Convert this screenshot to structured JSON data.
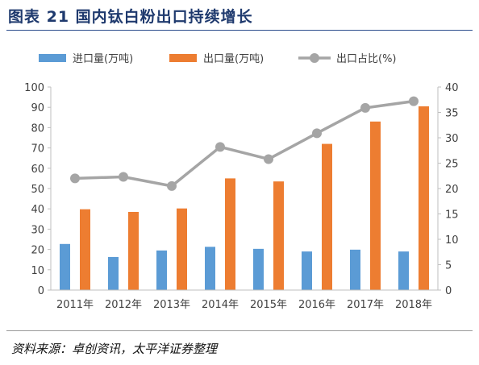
{
  "figure_title": "图表 21  国内钛白粉出口持续增长",
  "source": "资料来源：卓创资讯，太平洋证券整理",
  "chart_data": {
    "type": "bar",
    "categories": [
      "2011年",
      "2012年",
      "2013年",
      "2014年",
      "2015年",
      "2016年",
      "2017年",
      "2018年"
    ],
    "series": [
      {
        "name": "进口量(万吨)",
        "type": "bar",
        "axis": "left",
        "color": "#5b9bd5",
        "values": [
          22.7,
          16.3,
          19.5,
          21.3,
          20.3,
          19.0,
          19.9,
          19.0
        ]
      },
      {
        "name": "出口量(万吨)",
        "type": "bar",
        "axis": "left",
        "color": "#ed7d31",
        "values": [
          39.8,
          38.5,
          40.2,
          55.0,
          53.5,
          72.0,
          83.0,
          90.5
        ]
      },
      {
        "name": "出口占比(%)",
        "type": "line",
        "axis": "right",
        "color": "#a5a5a5",
        "values": [
          22.0,
          22.3,
          20.5,
          28.2,
          25.8,
          30.9,
          35.9,
          37.2
        ]
      }
    ],
    "left_axis": {
      "min": 0,
      "max": 100,
      "step": 10,
      "ticks": [
        "0",
        "10",
        "20",
        "30",
        "40",
        "50",
        "60",
        "70",
        "80",
        "90",
        "100"
      ]
    },
    "right_axis": {
      "min": 0,
      "max": 40,
      "step": 5,
      "ticks": [
        "0",
        "5",
        "10",
        "15",
        "20",
        "25",
        "30",
        "35",
        "40"
      ]
    },
    "legend_position": "top",
    "grid": false
  }
}
